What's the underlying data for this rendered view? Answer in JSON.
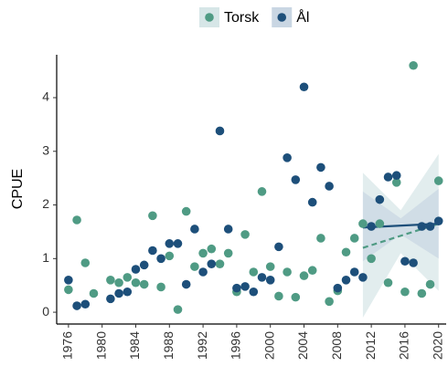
{
  "chart_data": {
    "type": "scatter",
    "ylabel": "CPUE",
    "xlim": [
      1974.6,
      2020.9
    ],
    "ylim": [
      -0.22,
      4.8
    ],
    "xticks": [
      1976,
      1980,
      1984,
      1988,
      1992,
      1996,
      2000,
      2004,
      2008,
      2012,
      2016,
      2020
    ],
    "yticks": [
      0,
      1,
      2,
      3,
      4
    ],
    "legend": "top",
    "series": [
      {
        "name": "Torsk",
        "color": "#4f9b84",
        "band_color": "#d6e6e7",
        "x": [
          1976,
          1977,
          1978,
          1979,
          1981,
          1982,
          1983,
          1984,
          1985,
          1986,
          1987,
          1988,
          1989,
          1990,
          1991,
          1992,
          1993,
          1994,
          1995,
          1996,
          1997,
          1998,
          1999,
          2000,
          2001,
          2002,
          2003,
          2004,
          2005,
          2006,
          2007,
          2008,
          2009,
          2010,
          2011,
          2012,
          2013,
          2014,
          2015,
          2016,
          2017,
          2018,
          2019,
          2020
        ],
        "values": [
          0.42,
          1.72,
          0.92,
          0.35,
          0.6,
          0.55,
          0.65,
          0.55,
          0.52,
          1.8,
          0.47,
          1.05,
          0.05,
          1.88,
          0.85,
          1.1,
          1.18,
          0.9,
          1.1,
          0.38,
          1.45,
          0.75,
          2.25,
          0.85,
          0.3,
          0.75,
          0.28,
          0.68,
          0.78,
          1.38,
          0.2,
          0.4,
          1.12,
          1.38,
          1.65,
          1.0,
          1.65,
          0.55,
          2.42,
          0.38,
          4.6,
          0.35,
          0.52,
          2.45
        ],
        "trend": {
          "x": [
            2011,
            2020
          ],
          "values": [
            1.2,
            1.65
          ]
        },
        "band": {
          "x": [
            2011,
            2015.5,
            2020
          ],
          "lower": [
            -0.1,
            1.1,
            0.4
          ],
          "upper": [
            2.6,
            1.9,
            2.95
          ]
        }
      },
      {
        "name": "Ål",
        "color": "#1d4f7a",
        "band_color": "#c9d6e3",
        "x": [
          1976,
          1977,
          1978,
          1981,
          1982,
          1983,
          1984,
          1985,
          1986,
          1987,
          1988,
          1989,
          1990,
          1991,
          1992,
          1993,
          1994,
          1995,
          1996,
          1997,
          1998,
          1999,
          2000,
          2001,
          2002,
          2003,
          2004,
          2005,
          2006,
          2007,
          2008,
          2009,
          2010,
          2011,
          2012,
          2013,
          2014,
          2015,
          2016,
          2017,
          2018,
          2019,
          2020
        ],
        "values": [
          0.6,
          0.12,
          0.15,
          0.25,
          0.35,
          0.38,
          0.8,
          0.88,
          1.15,
          1.0,
          1.28,
          1.28,
          0.52,
          1.55,
          0.75,
          0.9,
          3.38,
          1.55,
          0.45,
          0.48,
          0.38,
          0.65,
          0.6,
          1.22,
          2.88,
          2.47,
          4.2,
          2.05,
          2.7,
          2.35,
          0.45,
          0.6,
          0.75,
          0.65,
          1.6,
          2.1,
          2.52,
          2.55,
          0.95,
          0.92,
          1.6,
          1.6,
          1.7
        ],
        "trend": {
          "x": [
            2011,
            2020
          ],
          "values": [
            1.58,
            1.65
          ]
        },
        "band": {
          "x": [
            2011,
            2015.5,
            2020
          ],
          "lower": [
            0.95,
            1.45,
            1.0
          ],
          "upper": [
            2.25,
            1.75,
            2.3
          ]
        }
      }
    ]
  }
}
